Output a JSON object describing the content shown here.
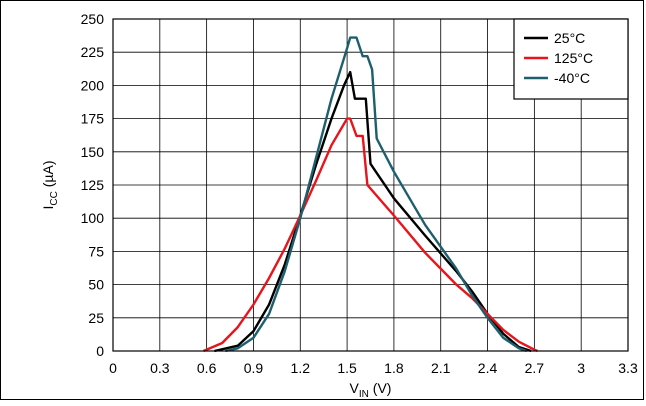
{
  "chart_data": {
    "type": "line",
    "xlabel": {
      "main": "V",
      "sub": "IN",
      "unit": " (V)"
    },
    "ylabel": {
      "main": "I",
      "sub": "CC",
      "unit": " (µA)"
    },
    "xlim": [
      0,
      3.3
    ],
    "ylim": [
      0,
      250
    ],
    "xticks": [
      0,
      0.3,
      0.6,
      0.9,
      1.2,
      1.5,
      1.8,
      2.1,
      2.4,
      2.7,
      3,
      3.3
    ],
    "xtick_labels": [
      "0",
      "0.3",
      "0.6",
      "0.9",
      "1.2",
      "1.5",
      "1.8",
      "2.1",
      "2.4",
      "2.7",
      "3",
      "3.3"
    ],
    "yticks": [
      0,
      25,
      50,
      75,
      100,
      125,
      150,
      175,
      200,
      225,
      250
    ],
    "ytick_labels": [
      "0",
      "25",
      "50",
      "75",
      "100",
      "125",
      "150",
      "175",
      "200",
      "225",
      "250"
    ],
    "grid": true,
    "legend_position": "top-right",
    "series": [
      {
        "name": "25°C",
        "color": "#000000",
        "points": [
          [
            0.65,
            0
          ],
          [
            0.8,
            4
          ],
          [
            0.9,
            15
          ],
          [
            1.0,
            35
          ],
          [
            1.1,
            65
          ],
          [
            1.2,
            102
          ],
          [
            1.3,
            140
          ],
          [
            1.4,
            175
          ],
          [
            1.48,
            200
          ],
          [
            1.52,
            210
          ],
          [
            1.55,
            190
          ],
          [
            1.62,
            190
          ],
          [
            1.65,
            141
          ],
          [
            1.8,
            115
          ],
          [
            2.0,
            87
          ],
          [
            2.2,
            60
          ],
          [
            2.3,
            45
          ],
          [
            2.4,
            28
          ],
          [
            2.5,
            13
          ],
          [
            2.6,
            3
          ],
          [
            2.68,
            0
          ]
        ]
      },
      {
        "name": "125°C",
        "color": "#e8141c",
        "points": [
          [
            0.58,
            0
          ],
          [
            0.7,
            6
          ],
          [
            0.8,
            18
          ],
          [
            0.9,
            35
          ],
          [
            1.0,
            55
          ],
          [
            1.1,
            77
          ],
          [
            1.2,
            102
          ],
          [
            1.3,
            128
          ],
          [
            1.4,
            155
          ],
          [
            1.5,
            175
          ],
          [
            1.52,
            175
          ],
          [
            1.56,
            162
          ],
          [
            1.6,
            162
          ],
          [
            1.63,
            125
          ],
          [
            1.8,
            102
          ],
          [
            2.0,
            74
          ],
          [
            2.2,
            50
          ],
          [
            2.3,
            40
          ],
          [
            2.4,
            28
          ],
          [
            2.5,
            16
          ],
          [
            2.6,
            7
          ],
          [
            2.7,
            1
          ],
          [
            2.72,
            0
          ]
        ]
      },
      {
        "name": "-40°C",
        "color": "#1e5f6e",
        "points": [
          [
            0.72,
            0
          ],
          [
            0.8,
            2
          ],
          [
            0.9,
            10
          ],
          [
            1.0,
            28
          ],
          [
            1.1,
            60
          ],
          [
            1.2,
            100
          ],
          [
            1.3,
            145
          ],
          [
            1.4,
            190
          ],
          [
            1.5,
            228
          ],
          [
            1.52,
            236
          ],
          [
            1.56,
            236
          ],
          [
            1.6,
            222
          ],
          [
            1.63,
            222
          ],
          [
            1.66,
            212
          ],
          [
            1.69,
            160
          ],
          [
            1.8,
            135
          ],
          [
            2.0,
            95
          ],
          [
            2.2,
            62
          ],
          [
            2.3,
            42
          ],
          [
            2.4,
            25
          ],
          [
            2.5,
            10
          ],
          [
            2.6,
            2
          ],
          [
            2.65,
            0
          ]
        ]
      }
    ]
  }
}
